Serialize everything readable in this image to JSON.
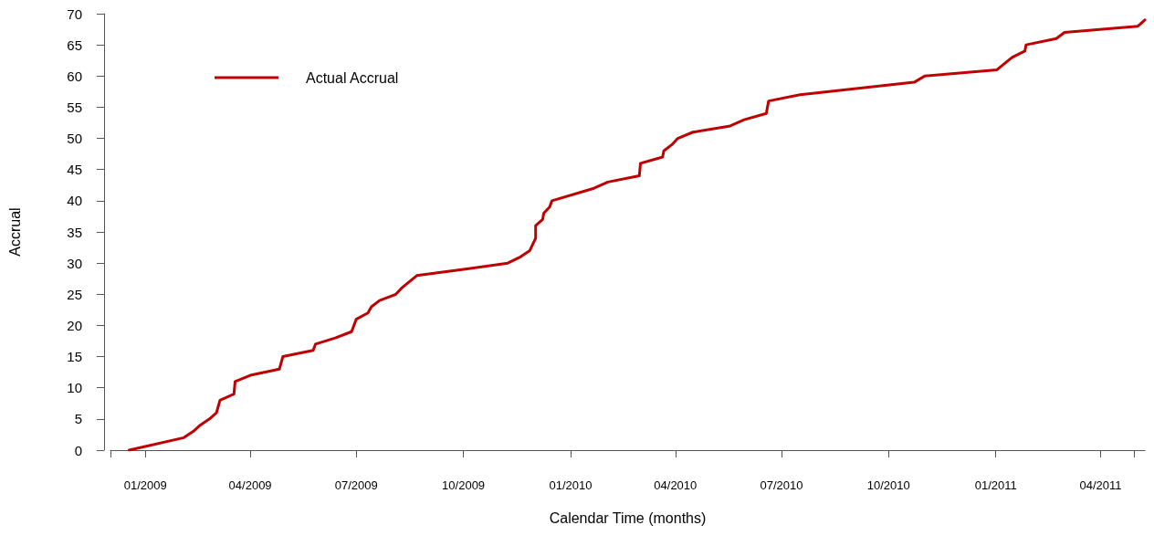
{
  "chart_data": {
    "type": "line",
    "xlabel": "Calendar Time (months)",
    "ylabel": "Accrual",
    "x": [
      "2008-12-18",
      "2009-02-03",
      "2009-02-11",
      "2009-02-17",
      "2009-02-25",
      "2009-03-03",
      "2009-03-06",
      "2009-03-18",
      "2009-03-19",
      "2009-04-01",
      "2009-04-26",
      "2009-04-29",
      "2009-05-25",
      "2009-05-27",
      "2009-06-13",
      "2009-06-27",
      "2009-07-01",
      "2009-07-11",
      "2009-07-14",
      "2009-07-21",
      "2009-08-04",
      "2009-08-09",
      "2009-08-22",
      "2009-10-01",
      "2009-11-08",
      "2009-11-19",
      "2009-11-27",
      "2009-12-02",
      "2009-12-02",
      "2009-12-08",
      "2009-12-09",
      "2009-12-14",
      "2009-12-16",
      "2010-01-21",
      "2010-02-02",
      "2010-03-01",
      "2010-03-02",
      "2010-03-21",
      "2010-03-22",
      "2010-03-29",
      "2010-04-03",
      "2010-04-16",
      "2010-05-18",
      "2010-05-30",
      "2010-06-18",
      "2010-06-20",
      "2010-07-17",
      "2010-10-23",
      "2010-11-01",
      "2011-01-02",
      "2011-01-15",
      "2011-01-26",
      "2011-01-27",
      "2011-02-22",
      "2011-03-01",
      "2011-05-03",
      "2011-05-09"
    ],
    "series": [
      {
        "name": "Actual Accrual",
        "color": "#c00000",
        "values": [
          0,
          2,
          3,
          4,
          5,
          6,
          8,
          9,
          11,
          12,
          13,
          15,
          16,
          17,
          18,
          19,
          21,
          22,
          23,
          24,
          25,
          26,
          28,
          29,
          30,
          31,
          32,
          34,
          36,
          37,
          38,
          39,
          40,
          42,
          43,
          44,
          46,
          47,
          48,
          49,
          50,
          51,
          52,
          53,
          54,
          56,
          57,
          59,
          60,
          61,
          63,
          64,
          65,
          66,
          67,
          68,
          69
        ]
      }
    ],
    "xlim": [
      "2008-12-02",
      "2011-05-09"
    ],
    "xticks": [
      {
        "value": "2008-12-02",
        "label": null
      },
      {
        "value": "2009-01-01",
        "label": "01/2009"
      },
      {
        "value": "2009-04-01",
        "label": "04/2009"
      },
      {
        "value": "2009-07-01",
        "label": "07/2009"
      },
      {
        "value": "2009-10-01",
        "label": "10/2009"
      },
      {
        "value": "2010-01-01",
        "label": "01/2010"
      },
      {
        "value": "2010-04-01",
        "label": "04/2010"
      },
      {
        "value": "2010-07-01",
        "label": "07/2010"
      },
      {
        "value": "2010-10-01",
        "label": "10/2010"
      },
      {
        "value": "2011-01-01",
        "label": "01/2011"
      },
      {
        "value": "2011-04-01",
        "label": "04/2011"
      },
      {
        "value": "2011-04-30",
        "label": null
      }
    ],
    "ylim": [
      0,
      70
    ],
    "yticks": [
      0,
      5,
      10,
      15,
      20,
      25,
      30,
      35,
      40,
      45,
      50,
      55,
      60,
      65,
      70
    ],
    "legend": "top left",
    "marker": "none",
    "line_style": "solid",
    "grid": false
  }
}
